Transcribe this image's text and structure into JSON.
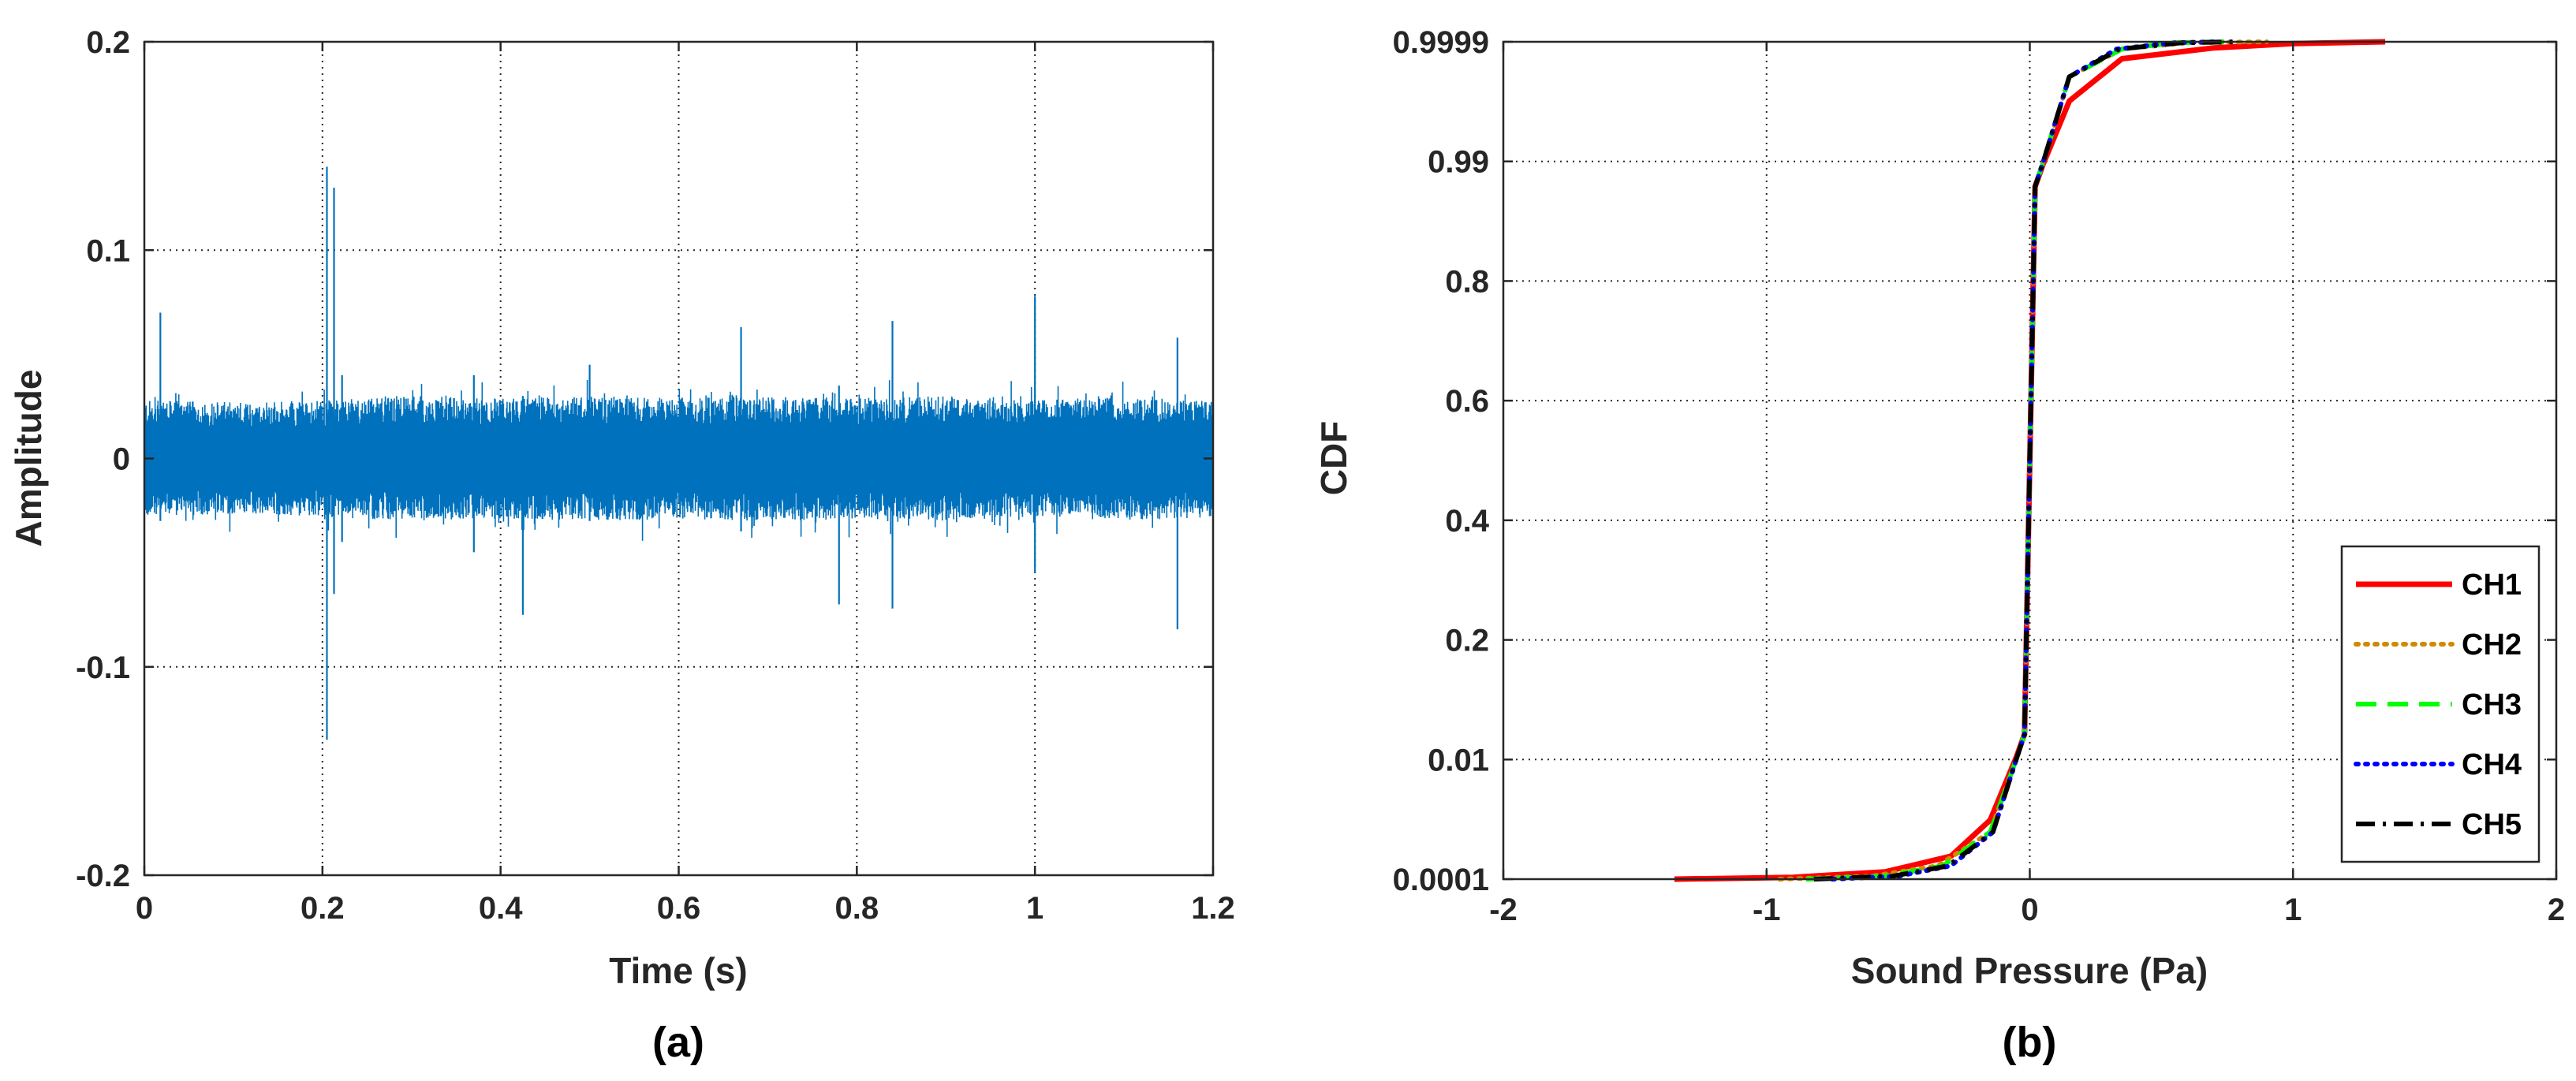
{
  "chart_data": [
    {
      "type": "line",
      "caption": "(a)",
      "xlabel": "Time (s)",
      "ylabel": "Amplitude",
      "xlim": [
        0,
        1.2
      ],
      "ylim": [
        -0.2,
        0.2
      ],
      "x_ticks": [
        0,
        0.2,
        0.4,
        0.6,
        0.8,
        1,
        1.2
      ],
      "x_tick_labels": [
        "0",
        "0.2",
        "0.4",
        "0.6",
        "0.8",
        "1",
        "1.2"
      ],
      "y_ticks": [
        -0.2,
        -0.1,
        0,
        0.1,
        0.2
      ],
      "y_tick_labels": [
        "-0.2",
        "-0.1",
        "0",
        "0.1",
        "0.2"
      ],
      "grid": true,
      "series_color": "#0072BD",
      "noise_band": {
        "x": [
          0,
          0.1,
          0.2,
          0.3,
          0.4,
          0.5,
          0.6,
          0.7,
          0.8,
          0.9,
          1.0,
          1.1,
          1.2
        ],
        "upper": [
          0.028,
          0.027,
          0.028,
          0.03,
          0.029,
          0.03,
          0.029,
          0.03,
          0.029,
          0.03,
          0.028,
          0.03,
          0.028
        ],
        "lower": [
          -0.028,
          -0.027,
          -0.028,
          -0.03,
          -0.029,
          -0.03,
          -0.029,
          -0.03,
          -0.029,
          -0.03,
          -0.028,
          -0.03,
          -0.028
        ]
      },
      "spikes": [
        {
          "x": 0.018,
          "max": 0.07,
          "min": -0.03
        },
        {
          "x": 0.205,
          "max": 0.14,
          "min": -0.135
        },
        {
          "x": 0.213,
          "max": 0.13,
          "min": -0.065
        },
        {
          "x": 0.222,
          "max": 0.04,
          "min": -0.04
        },
        {
          "x": 0.37,
          "max": 0.04,
          "min": -0.045
        },
        {
          "x": 0.425,
          "max": 0.03,
          "min": -0.075
        },
        {
          "x": 0.5,
          "max": 0.045,
          "min": -0.03
        },
        {
          "x": 0.67,
          "max": 0.063,
          "min": -0.035
        },
        {
          "x": 0.78,
          "max": 0.035,
          "min": -0.07
        },
        {
          "x": 0.84,
          "max": 0.066,
          "min": -0.072
        },
        {
          "x": 1.0,
          "max": 0.078,
          "min": -0.055
        },
        {
          "x": 1.16,
          "max": 0.058,
          "min": -0.082
        }
      ]
    },
    {
      "type": "line",
      "caption": "(b)",
      "xlabel": "Sound Pressure (Pa)",
      "ylabel": "CDF",
      "xlim": [
        -2,
        2
      ],
      "x_ticks": [
        -2,
        -1,
        0,
        1,
        2
      ],
      "x_tick_labels": [
        "-2",
        "-1",
        "0",
        "1",
        "2"
      ],
      "y_scale": "normal-probability",
      "y_ticks": [
        0.0001,
        0.01,
        0.2,
        0.4,
        0.6,
        0.8,
        0.99,
        0.9999
      ],
      "y_tick_labels": [
        "0.0001",
        "0.01",
        "0.2",
        "0.4",
        "0.6",
        "0.8",
        "0.99",
        "0.9999"
      ],
      "grid": true,
      "legend_position": "bottom-right",
      "series": [
        {
          "name": "CH1",
          "color": "#FF0000",
          "style": "solid",
          "points": [
            [
              -1.35,
              0.0001
            ],
            [
              -0.9,
              0.00025
            ],
            [
              -0.55,
              0.0007
            ],
            [
              -0.3,
              0.002
            ],
            [
              -0.15,
              0.005
            ],
            [
              -0.05,
              0.015
            ],
            [
              -0.02,
              0.05
            ],
            [
              0,
              0.5
            ],
            [
              0.02,
              0.95
            ],
            [
              0.05,
              0.985
            ],
            [
              0.15,
              0.995
            ],
            [
              0.35,
              0.9985
            ],
            [
              0.7,
              0.9994
            ],
            [
              1.0,
              0.99975
            ],
            [
              1.35,
              0.9999
            ]
          ]
        },
        {
          "name": "CH2",
          "color": "#D08A00",
          "style": "dotted",
          "points": [
            [
              -0.95,
              0.0001
            ],
            [
              -0.6,
              0.00035
            ],
            [
              -0.35,
              0.0012
            ],
            [
              -0.15,
              0.004
            ],
            [
              -0.05,
              0.012
            ],
            [
              -0.02,
              0.05
            ],
            [
              0,
              0.5
            ],
            [
              0.02,
              0.95
            ],
            [
              0.05,
              0.988
            ],
            [
              0.15,
              0.997
            ],
            [
              0.35,
              0.9993
            ],
            [
              0.6,
              0.99982
            ],
            [
              0.9,
              0.9999
            ]
          ]
        },
        {
          "name": "CH3",
          "color": "#00FF00",
          "style": "dashed",
          "points": [
            [
              -0.85,
              0.0001
            ],
            [
              -0.55,
              0.00035
            ],
            [
              -0.33,
              0.0012
            ],
            [
              -0.15,
              0.004
            ],
            [
              -0.05,
              0.012
            ],
            [
              -0.02,
              0.05
            ],
            [
              0,
              0.5
            ],
            [
              0.02,
              0.95
            ],
            [
              0.05,
              0.988
            ],
            [
              0.15,
              0.997
            ],
            [
              0.35,
              0.9993
            ],
            [
              0.55,
              0.99982
            ],
            [
              0.75,
              0.9999
            ]
          ]
        },
        {
          "name": "CH4",
          "color": "#0000FF",
          "style": "dotted",
          "points": [
            [
              -0.75,
              0.0001
            ],
            [
              -0.5,
              0.00035
            ],
            [
              -0.3,
              0.0012
            ],
            [
              -0.14,
              0.004
            ],
            [
              -0.05,
              0.012
            ],
            [
              -0.02,
              0.05
            ],
            [
              0,
              0.5
            ],
            [
              0.02,
              0.95
            ],
            [
              0.05,
              0.988
            ],
            [
              0.15,
              0.997
            ],
            [
              0.33,
              0.9993
            ],
            [
              0.55,
              0.99982
            ],
            [
              0.72,
              0.9999
            ]
          ]
        },
        {
          "name": "CH5",
          "color": "#000000",
          "style": "dashdot",
          "points": [
            [
              -0.82,
              0.0001
            ],
            [
              -0.52,
              0.00035
            ],
            [
              -0.31,
              0.0012
            ],
            [
              -0.14,
              0.004
            ],
            [
              -0.05,
              0.012
            ],
            [
              -0.02,
              0.05
            ],
            [
              0,
              0.5
            ],
            [
              0.02,
              0.95
            ],
            [
              0.05,
              0.988
            ],
            [
              0.15,
              0.997
            ],
            [
              0.34,
              0.9993
            ],
            [
              0.58,
              0.99982
            ],
            [
              0.8,
              0.9999
            ]
          ]
        }
      ]
    }
  ]
}
